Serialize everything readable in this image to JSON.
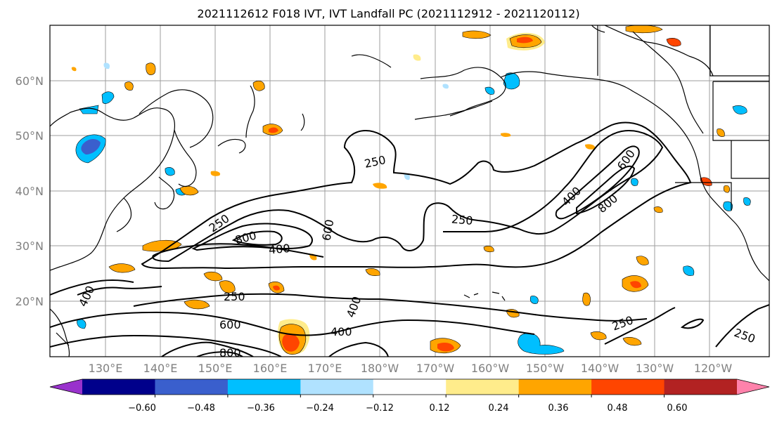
{
  "title": "2021112612 F018 IVT, IVT Landfall PC (2021112912 - 2021120112)",
  "lon_labels": [
    "130°E",
    "140°E",
    "150°E",
    "160°E",
    "170°E",
    "180°W",
    "170°W",
    "160°W",
    "150°W",
    "140°W",
    "130°W",
    "120°W"
  ],
  "lat_labels": [
    "60°N",
    "50°N",
    "40°N",
    "30°N",
    "20°N"
  ],
  "colorbar": {
    "ticks": [
      "−0.60",
      "−0.48",
      "−0.36",
      "−0.24",
      "−0.12",
      "0.12",
      "0.24",
      "0.36",
      "0.48",
      "0.60"
    ],
    "colors": [
      "#9932CC",
      "#00008B",
      "#3A5FCD",
      "#00BFFF",
      "#B0E2FF",
      "#FFFFFF",
      "#FFEC8B",
      "#FFA500",
      "#FF4500",
      "#B22222",
      "#FF82AB"
    ]
  },
  "contour_labels": {
    "c250_a": "250",
    "c250_b": "250",
    "c250_c": "250",
    "c250_d": "250",
    "c250_e": "250",
    "c250_f": "250",
    "c400_a": "400",
    "c400_b": "400",
    "c400_c": "400",
    "c400_d": "400",
    "c400_e": "400",
    "c600_a": "600",
    "c600_b": "600",
    "c600_c": "600",
    "c800_a": "800",
    "c800_b": "800",
    "c800_c": "800"
  }
}
